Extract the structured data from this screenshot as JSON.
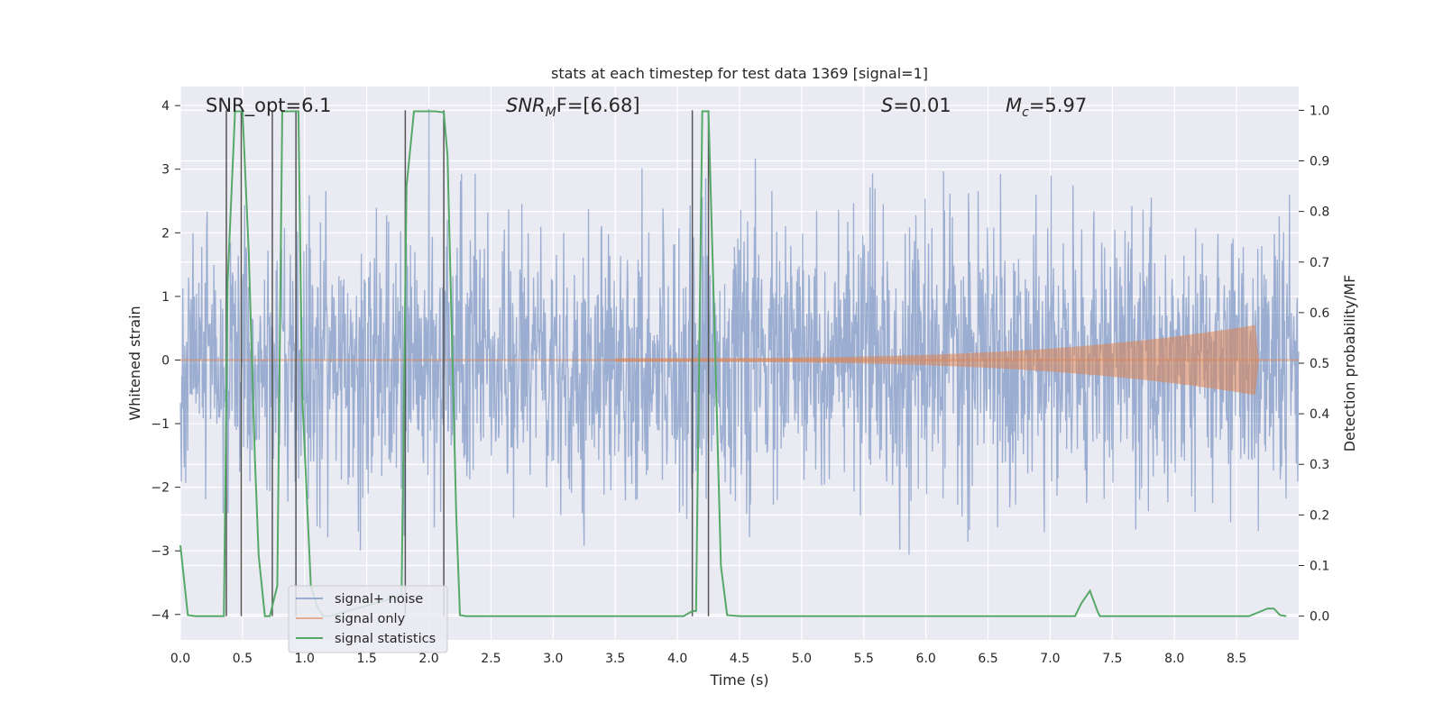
{
  "chart_data": {
    "type": "line",
    "title": "stats at each timestep for test data 1369 [signal=1]",
    "xlabel": "Time (s)",
    "ylabel": "Whitened strain",
    "ylabel_right": "Detection probability/MF",
    "xlim": [
      0,
      9
    ],
    "ylim": [
      -4.4,
      4.3
    ],
    "ylim_right": [
      -0.047,
      1.047
    ],
    "x_ticks": [
      "0.0",
      "0.5",
      "1.0",
      "1.5",
      "2.0",
      "2.5",
      "3.0",
      "3.5",
      "4.0",
      "4.5",
      "5.0",
      "5.5",
      "6.0",
      "6.5",
      "7.0",
      "7.5",
      "8.0",
      "8.5"
    ],
    "y_ticks": [
      "4",
      "3",
      "2",
      "1",
      "0",
      "−1",
      "−2",
      "−3",
      "−4"
    ],
    "y_ticks_right": [
      "1.0",
      "0.9",
      "0.8",
      "0.7",
      "0.6",
      "0.5",
      "0.4",
      "0.3",
      "0.2",
      "0.1",
      "0.0"
    ],
    "grid": true,
    "legend_position": "lower-left",
    "annotations": {
      "snr_opt": "SNR_opt=6.1",
      "snr_mf_main": "SNR",
      "snr_mf_sub": "M",
      "snr_mf_rest": "F=[6.68]",
      "s_main": "S",
      "s_rest": "=0.01",
      "mc_main": "M",
      "mc_sub": "c",
      "mc_rest": "=5.97"
    },
    "series": [
      {
        "name": "signal+ noise",
        "color": "#4c72b0",
        "description_values": "gaussian noise, amplitude roughly within -3.9 to 3.9 across 0-9 s"
      },
      {
        "name": "signal only",
        "color": "#dd8452",
        "chirp": {
          "start": 3.5,
          "end": 8.65,
          "peak_amplitude": 0.55
        }
      },
      {
        "name": "signal statistics",
        "color": "#55a868",
        "x": [
          0.0,
          0.06,
          0.12,
          0.3,
          0.35,
          0.38,
          0.44,
          0.5,
          0.55,
          0.6,
          0.63,
          0.68,
          0.72,
          0.78,
          0.82,
          0.9,
          0.95,
          0.98,
          1.05,
          1.1,
          1.15,
          1.2,
          1.78,
          1.82,
          1.88,
          2.05,
          2.12,
          2.15,
          2.22,
          2.25,
          2.3,
          4.05,
          4.12,
          4.15,
          4.2,
          4.25,
          4.3,
          4.35,
          4.4,
          4.5,
          7.2,
          7.25,
          7.32,
          7.38,
          7.4,
          8.6,
          8.7,
          8.75,
          8.8,
          8.85,
          8.9
        ],
        "values": [
          0.14,
          0.002,
          0.0,
          0.0,
          0.0,
          0.66,
          0.998,
          0.998,
          0.72,
          0.31,
          0.12,
          0.0,
          0.0,
          0.06,
          0.998,
          0.998,
          0.998,
          0.44,
          0.06,
          0.02,
          0.0,
          0.0,
          0.04,
          0.85,
          0.998,
          0.998,
          0.996,
          0.91,
          0.2,
          0.002,
          0.0,
          0.0,
          0.01,
          0.01,
          0.998,
          0.998,
          0.56,
          0.1,
          0.002,
          0.0,
          0.0,
          0.025,
          0.05,
          0.01,
          0.0,
          0.0,
          0.01,
          0.015,
          0.015,
          0.002,
          0.0
        ]
      }
    ],
    "vertical_markers": [
      0.37,
      0.49,
      0.74,
      0.93,
      1.81,
      2.12,
      4.12,
      4.25
    ]
  }
}
